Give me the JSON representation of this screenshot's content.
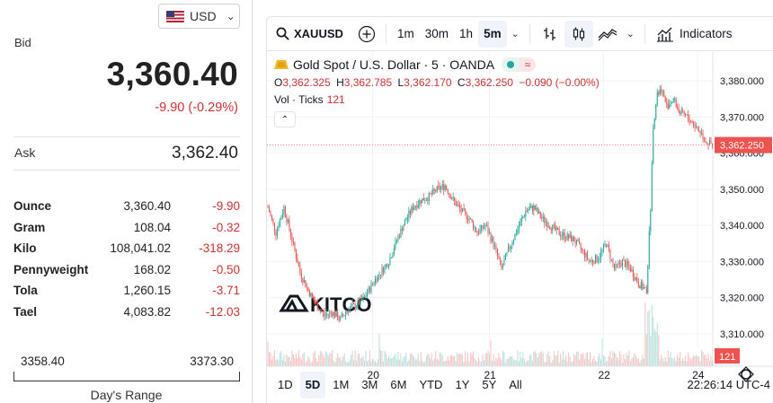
{
  "left_panel": {
    "currency": "USD",
    "bid_label": "Bid",
    "bid_value": "3,360.40",
    "bid_change": "-9.90 (-0.29%)",
    "ask_label": "Ask",
    "ask_value": "3,362.40",
    "units": [
      {
        "name": "Ounce",
        "price": "3,360.40",
        "change": "-9.90"
      },
      {
        "name": "Gram",
        "price": "108.04",
        "change": "-0.32"
      },
      {
        "name": "Kilo",
        "price": "108,041.02",
        "change": "-318.29"
      },
      {
        "name": "Pennyweight",
        "price": "168.02",
        "change": "-0.50"
      },
      {
        "name": "Tola",
        "price": "1,260.15",
        "change": "-3.71"
      },
      {
        "name": "Tael",
        "price": "4,083.82",
        "change": "-12.03"
      }
    ],
    "range_low": "3358.40",
    "range_high": "3373.30",
    "range_label": "Day's Range"
  },
  "toolbar": {
    "symbol": "XAUUSD",
    "intervals": [
      "1m",
      "30m",
      "1h",
      "5m"
    ],
    "active_interval": "5m",
    "indicators_label": "Indicators"
  },
  "legend": {
    "title": "Gold Spot / U.S. Dollar · 5 · OANDA",
    "o_key": "O",
    "o_val": "3,362.325",
    "h_key": "H",
    "h_val": "3,362.785",
    "l_key": "L",
    "l_val": "3,362.170",
    "c_key": "C",
    "c_val": "3,362.250",
    "change": "−0.090 (−0.00%)",
    "vol_label": "Vol · Ticks",
    "vol_value": "121"
  },
  "chart_data": {
    "type": "candlestick",
    "watermark": "KITCO",
    "y_ticks": [
      "3,380.000",
      "3,370.000",
      "3,360.000",
      "3,350.000",
      "3,340.000",
      "3,330.000",
      "3,320.000",
      "3,310.000"
    ],
    "y_values": [
      3380,
      3370,
      3360,
      3350,
      3340,
      3330,
      3320,
      3310
    ],
    "ylim": [
      3306,
      3388
    ],
    "x_ticks": [
      "20",
      "21",
      "22",
      "24"
    ],
    "x_tick_index": [
      78,
      165,
      250,
      320
    ],
    "last_price": "3,362.250",
    "last_value": 3362.25,
    "last_volume": "121",
    "path_points": [
      [
        0,
        3345
      ],
      [
        6,
        3338
      ],
      [
        12,
        3345
      ],
      [
        18,
        3336
      ],
      [
        24,
        3327
      ],
      [
        30,
        3322
      ],
      [
        36,
        3318
      ],
      [
        42,
        3315
      ],
      [
        48,
        3316
      ],
      [
        54,
        3314
      ],
      [
        60,
        3317
      ],
      [
        66,
        3318
      ],
      [
        72,
        3320
      ],
      [
        78,
        3324
      ],
      [
        84,
        3327
      ],
      [
        90,
        3330
      ],
      [
        96,
        3336
      ],
      [
        102,
        3341
      ],
      [
        108,
        3345
      ],
      [
        114,
        3347
      ],
      [
        120,
        3348
      ],
      [
        126,
        3350
      ],
      [
        132,
        3351
      ],
      [
        138,
        3347
      ],
      [
        144,
        3344
      ],
      [
        150,
        3342
      ],
      [
        156,
        3338
      ],
      [
        162,
        3340
      ],
      [
        168,
        3335
      ],
      [
        174,
        3328
      ],
      [
        180,
        3334
      ],
      [
        186,
        3339
      ],
      [
        192,
        3344
      ],
      [
        198,
        3345
      ],
      [
        204,
        3342
      ],
      [
        210,
        3340
      ],
      [
        216,
        3338
      ],
      [
        222,
        3337
      ],
      [
        228,
        3336
      ],
      [
        234,
        3333
      ],
      [
        240,
        3330
      ],
      [
        246,
        3331
      ],
      [
        252,
        3335
      ],
      [
        258,
        3328
      ],
      [
        264,
        3330
      ],
      [
        270,
        3328
      ],
      [
        276,
        3324
      ],
      [
        282,
        3322
      ],
      [
        285,
        3345
      ],
      [
        287,
        3368
      ],
      [
        290,
        3376
      ],
      [
        293,
        3378
      ],
      [
        297,
        3373
      ],
      [
        302,
        3375
      ],
      [
        307,
        3371
      ],
      [
        312,
        3370
      ],
      [
        317,
        3368
      ],
      [
        322,
        3366
      ],
      [
        327,
        3363
      ],
      [
        331,
        3362.25
      ]
    ],
    "bars": 332
  },
  "bottom": {
    "ranges": [
      "1D",
      "5D",
      "1M",
      "3M",
      "6M",
      "YTD",
      "1Y",
      "5Y",
      "All"
    ],
    "active_range": "5D",
    "clock": "22:26:14 UTC-4"
  },
  "colors": {
    "up": "#26a69a",
    "down": "#ef5350",
    "loss_text": "#d32f2f",
    "last_price_bg": "#ef5350"
  }
}
